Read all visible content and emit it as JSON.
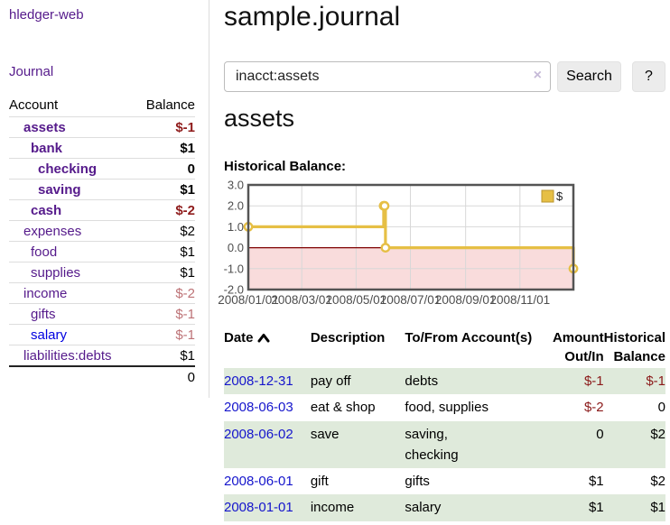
{
  "colors": {
    "link_purple": "#551a8b",
    "link_blue": "#0000e0",
    "negative_strong": "#8f1c1c",
    "negative_soft": "#bd7276",
    "row_stripe_green": "#dfeadb",
    "chart_line": "#e6bf45",
    "chart_negative_region": "#f9dcdc",
    "chart_zero_line": "#7f0000",
    "chart_grid": "#d8d8d8",
    "chart_border": "#545454"
  },
  "sidebar": {
    "brand": "hledger-web",
    "journal_link": "Journal",
    "accounts": {
      "headers": {
        "account": "Account",
        "balance": "Balance"
      },
      "rows": [
        {
          "name": "assets",
          "depth": 1,
          "balance": "$-1",
          "bold": true,
          "neg": "strong"
        },
        {
          "name": "bank",
          "depth": 2,
          "balance": "$1",
          "bold": true,
          "neg": ""
        },
        {
          "name": "checking",
          "depth": 3,
          "balance": "0",
          "bold": true,
          "neg": ""
        },
        {
          "name": "saving",
          "depth": 3,
          "balance": "$1",
          "bold": true,
          "neg": ""
        },
        {
          "name": "cash",
          "depth": 2,
          "balance": "$-2",
          "bold": true,
          "neg": "strong"
        },
        {
          "name": "expenses",
          "depth": 1,
          "balance": "$2",
          "bold": false,
          "neg": ""
        },
        {
          "name": "food",
          "depth": 2,
          "balance": "$1",
          "bold": false,
          "neg": ""
        },
        {
          "name": "supplies",
          "depth": 2,
          "balance": "$1",
          "bold": false,
          "neg": ""
        },
        {
          "name": "income",
          "depth": 1,
          "balance": "$-2",
          "bold": false,
          "neg": "soft"
        },
        {
          "name": "gifts",
          "depth": 2,
          "balance": "$-1",
          "bold": false,
          "neg": "soft"
        },
        {
          "name": "salary",
          "depth": 2,
          "balance": "$-1",
          "bold": false,
          "neg": "soft",
          "blue": true
        },
        {
          "name": "liabilities:debts",
          "depth": 1,
          "balance": "$1",
          "bold": false,
          "neg": ""
        }
      ],
      "total": "0"
    }
  },
  "header": {
    "title": "sample.journal"
  },
  "search": {
    "value": "inacct:assets",
    "clear_icon": "×",
    "search_button": "Search",
    "help_button": "?"
  },
  "main": {
    "account_heading": "assets",
    "chart_title": "Historical Balance:"
  },
  "chart_data": {
    "type": "line",
    "style": "step",
    "title": "Historical Balance",
    "xlim": [
      "2008-01-01",
      "2008-12-31"
    ],
    "ylim": [
      -2,
      3
    ],
    "x_ticks": [
      "2008/01/01",
      "2008/03/01",
      "2008/05/01",
      "2008/07/01",
      "2008/09/01",
      "2008/11/01"
    ],
    "y_ticks": [
      "3.0",
      "2.0",
      "1.0",
      "0.0",
      "-1.0",
      "-2.0"
    ],
    "legend": {
      "label": "$",
      "position": "top-right"
    },
    "negative_region_shaded": true,
    "series": [
      {
        "name": "$",
        "points": [
          [
            "2008-01-01",
            1
          ],
          [
            "2008-06-01",
            2
          ],
          [
            "2008-06-02",
            2
          ],
          [
            "2008-06-03",
            0
          ],
          [
            "2008-12-31",
            -1
          ]
        ]
      }
    ]
  },
  "transactions": {
    "headers": [
      "Date",
      "Description",
      "To/From Account(s)",
      "Amount Out/In",
      "Historical Balance"
    ],
    "sort": {
      "column": "Date",
      "direction": "up"
    },
    "rows": [
      {
        "date": "2008-12-31",
        "description": "pay off",
        "accounts": "debts",
        "amount": "$-1",
        "balance": "$-1"
      },
      {
        "date": "2008-06-03",
        "description": "eat & shop",
        "accounts": "food, supplies",
        "amount": "$-2",
        "balance": "0"
      },
      {
        "date": "2008-06-02",
        "description": "save",
        "accounts": "saving,\nchecking",
        "amount": "0",
        "balance": "$2"
      },
      {
        "date": "2008-06-01",
        "description": "gift",
        "accounts": "gifts",
        "amount": "$1",
        "balance": "$2"
      },
      {
        "date": "2008-01-01",
        "description": "income",
        "accounts": "salary",
        "amount": "$1",
        "balance": "$1"
      }
    ]
  }
}
